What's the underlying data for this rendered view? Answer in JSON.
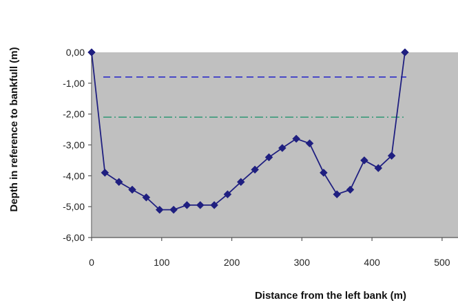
{
  "chart_data": {
    "type": "line",
    "xlabel": "Distance from the left bank (m)",
    "ylabel": "Depth in reference to bankfull (m)",
    "xlim": [
      0,
      500
    ],
    "ylim": [
      -6,
      0
    ],
    "x_ticks": [
      0,
      100,
      200,
      300,
      400,
      500
    ],
    "x_tick_labels": [
      "0",
      "100",
      "200",
      "300",
      "400",
      "500"
    ],
    "y_ticks": [
      0,
      -1,
      -2,
      -3,
      -4,
      -5,
      -6
    ],
    "y_tick_labels": [
      "0,00",
      "-1,00",
      "-2,00",
      "-3,00",
      "-4,00",
      "-5,00",
      "-6,00"
    ],
    "grid": false,
    "plot_background": "#c0c0c0",
    "series": [
      {
        "color": "#1f1f80",
        "marker": "diamond",
        "x": [
          0,
          19,
          39,
          58,
          78,
          97,
          117,
          136,
          155,
          175,
          194,
          213,
          233,
          253,
          272,
          292,
          311,
          331,
          350,
          369,
          389,
          409,
          428,
          447
        ],
        "y": [
          0.0,
          -3.9,
          -4.2,
          -4.45,
          -4.7,
          -5.1,
          -5.1,
          -4.95,
          -4.95,
          -4.95,
          -4.6,
          -4.2,
          -3.8,
          -3.4,
          -3.1,
          -2.8,
          -2.95,
          -3.9,
          -4.6,
          -4.45,
          -3.5,
          -3.75,
          -3.35,
          0.0
        ]
      }
    ],
    "reference_lines": [
      {
        "y": -0.8,
        "style": "dashed",
        "color": "#2020c8"
      },
      {
        "y": -2.1,
        "style": "dash-dot",
        "color": "#3a9a7a"
      }
    ]
  }
}
